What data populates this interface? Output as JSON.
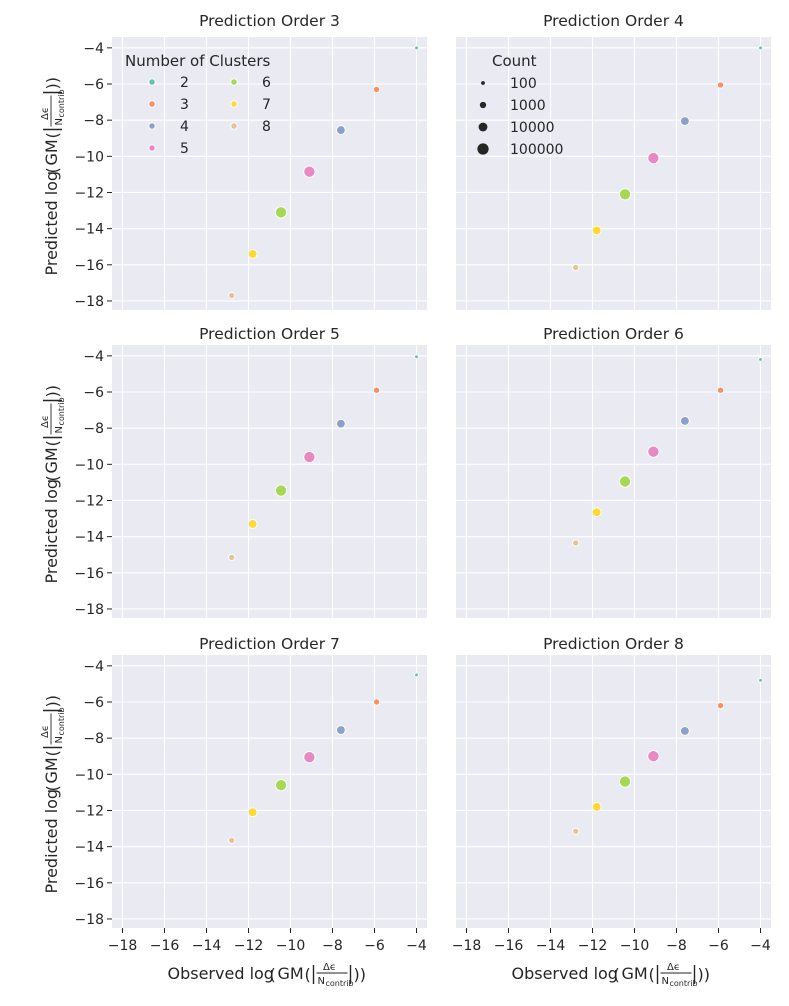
{
  "chart_data": {
    "type": "scatter",
    "x_label": {
      "prefix": "Observed log",
      "gm": "GM",
      "numerator": "Δϵ",
      "denominator_base": "N",
      "denominator_sub": "contrib"
    },
    "y_label": {
      "prefix": "Predicted log",
      "gm": "GM",
      "numerator": "Δϵ",
      "denominator_base": "N",
      "denominator_sub": "contrib"
    },
    "xlim": [
      -18.5,
      -3.5
    ],
    "ylim": [
      -18.5,
      -3.4
    ],
    "xticks": [
      -18,
      -16,
      -14,
      -12,
      -10,
      -8,
      -6,
      -4
    ],
    "yticks": [
      -18,
      -16,
      -14,
      -12,
      -10,
      -8,
      -6,
      -4
    ],
    "x_tick_labels": [
      "−18",
      "−16",
      "−14",
      "−12",
      "−10",
      "−8",
      "−6",
      "−4"
    ],
    "y_tick_labels": [
      "−18",
      "−16",
      "−14",
      "−12",
      "−10",
      "−8",
      "−6",
      "−4"
    ],
    "grid": true,
    "cluster_colors": {
      "2": "#66c2a5",
      "3": "#fc8d62",
      "4": "#8da0cb",
      "5": "#e78ac3",
      "6": "#a6d854",
      "7": "#ffd92f",
      "8": "#e5c494"
    },
    "observed_x": {
      "2": -4.0,
      "3": -5.9,
      "4": -7.6,
      "5": -9.1,
      "6": -10.45,
      "7": -11.8,
      "8": -12.8
    },
    "counts": {
      "2": 100,
      "3": 1000,
      "4": 10000,
      "5": 100000,
      "6": 100000,
      "7": 10000,
      "8": 1000
    },
    "panels": [
      {
        "title": "Prediction Order 3",
        "predicted": {
          "2": -4.0,
          "3": -6.3,
          "4": -8.55,
          "5": -10.85,
          "6": -13.1,
          "7": -15.4,
          "8": -17.7
        }
      },
      {
        "title": "Prediction Order 4",
        "predicted": {
          "2": -4.0,
          "3": -6.05,
          "4": -8.05,
          "5": -10.1,
          "6": -12.1,
          "7": -14.1,
          "8": -16.15
        }
      },
      {
        "title": "Prediction Order 5",
        "predicted": {
          "2": -4.05,
          "3": -5.9,
          "4": -7.75,
          "5": -9.6,
          "6": -11.45,
          "7": -13.3,
          "8": -15.15
        }
      },
      {
        "title": "Prediction Order 6",
        "predicted": {
          "2": -4.2,
          "3": -5.9,
          "4": -7.6,
          "5": -9.3,
          "6": -10.95,
          "7": -12.65,
          "8": -14.35
        }
      },
      {
        "title": "Prediction Order 7",
        "predicted": {
          "2": -4.5,
          "3": -6.0,
          "4": -7.55,
          "5": -9.05,
          "6": -10.6,
          "7": -12.1,
          "8": -13.65
        }
      },
      {
        "title": "Prediction Order 8",
        "predicted": {
          "2": -4.8,
          "3": -6.2,
          "4": -7.6,
          "5": -9.0,
          "6": -10.4,
          "7": -11.8,
          "8": -13.15
        }
      }
    ],
    "legend_clusters": {
      "title": "Number of Clusters",
      "entries": [
        "2",
        "3",
        "4",
        "5",
        "6",
        "7",
        "8"
      ],
      "placement": "upper-left of first panel"
    },
    "legend_count": {
      "title": "Count",
      "entries": [
        "100",
        "1000",
        "10000",
        "100000"
      ],
      "values": [
        100,
        1000,
        10000,
        100000
      ],
      "placement": "upper-left of second panel"
    }
  }
}
